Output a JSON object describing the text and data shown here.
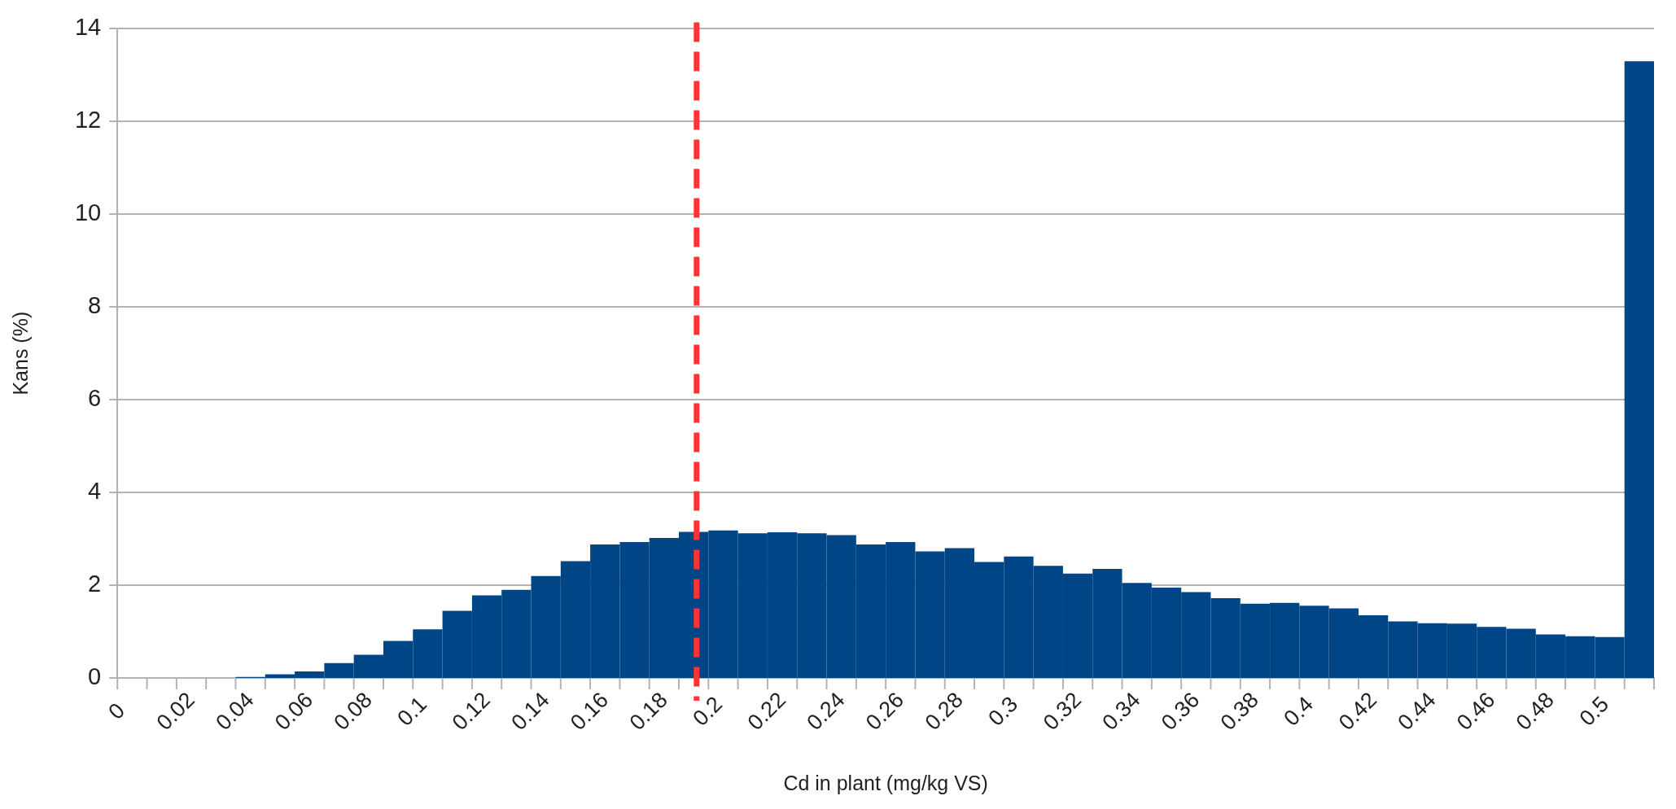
{
  "chart_data": {
    "type": "histogram",
    "xlabel": "Cd in plant (mg/kg VS)",
    "ylabel": "Kans (%)",
    "color": "#004586",
    "bins": [
      0,
      0.01,
      0.02,
      0.03,
      0.04,
      0.05,
      0.06,
      0.07,
      0.08,
      0.09,
      0.1,
      0.11,
      0.12,
      0.13,
      0.14,
      0.15,
      0.16,
      0.17,
      0.18,
      0.19,
      0.2,
      0.21,
      0.22,
      0.23,
      0.24,
      0.25,
      0.26,
      0.27,
      0.28,
      0.29,
      0.3,
      0.31,
      0.32,
      0.33,
      0.34,
      0.35,
      0.36,
      0.37,
      0.38,
      0.39,
      0.4,
      0.41,
      0.42,
      0.43,
      0.44,
      0.45,
      0.46,
      0.47,
      0.48,
      0.49,
      0.5,
      0.51,
      0.52
    ],
    "values": [
      0,
      0,
      0,
      0,
      0.02,
      0.08,
      0.14,
      0.32,
      0.5,
      0.8,
      1.05,
      1.45,
      1.78,
      1.9,
      2.2,
      2.52,
      2.88,
      2.93,
      3.02,
      3.15,
      3.18,
      3.12,
      3.14,
      3.12,
      3.08,
      2.88,
      2.93,
      2.73,
      2.8,
      2.5,
      2.62,
      2.42,
      2.25,
      2.35,
      2.05,
      1.95,
      1.85,
      1.72,
      1.6,
      1.62,
      1.56,
      1.5,
      1.35,
      1.22,
      1.18,
      1.17,
      1.1,
      1.06,
      0.94,
      0.9,
      0.88,
      13.3
    ],
    "xlim": [
      0,
      0.52
    ],
    "xticks": [
      0,
      {
        "value": 0.01,
        "label": null
      },
      0.02,
      {
        "value": 0.03,
        "label": null
      },
      0.04,
      {
        "value": 0.05,
        "label": null
      },
      0.06,
      {
        "value": 0.07,
        "label": null
      },
      0.08,
      {
        "value": 0.09,
        "label": null
      },
      0.1,
      {
        "value": 0.11,
        "label": null
      },
      0.12,
      {
        "value": 0.13,
        "label": null
      },
      0.14,
      {
        "value": 0.15,
        "label": null
      },
      0.16,
      {
        "value": 0.17,
        "label": null
      },
      0.18,
      {
        "value": 0.19,
        "label": null
      },
      0.2,
      {
        "value": 0.21,
        "label": null
      },
      0.22,
      {
        "value": 0.23,
        "label": null
      },
      0.24,
      {
        "value": 0.25,
        "label": null
      },
      0.26,
      {
        "value": 0.27,
        "label": null
      },
      0.28,
      {
        "value": 0.29,
        "label": null
      },
      0.3,
      {
        "value": 0.31,
        "label": null
      },
      0.32,
      {
        "value": 0.33,
        "label": null
      },
      0.34,
      {
        "value": 0.35,
        "label": null
      },
      0.36,
      {
        "value": 0.37,
        "label": null
      },
      0.38,
      {
        "value": 0.39,
        "label": null
      },
      0.4,
      {
        "value": 0.41,
        "label": null
      },
      0.42,
      {
        "value": 0.43,
        "label": null
      },
      0.44,
      {
        "value": 0.45,
        "label": null
      },
      0.46,
      {
        "value": 0.47,
        "label": null
      },
      0.48,
      {
        "value": 0.49,
        "label": null
      },
      0.5,
      {
        "value": 0.51,
        "label": null
      },
      {
        "value": 0.52,
        "label": null
      }
    ],
    "ylim": [
      0,
      14
    ],
    "yticks": [
      0,
      2,
      4,
      6,
      8,
      10,
      12,
      14
    ],
    "grid": "y",
    "ref_lines": [
      {
        "axis": "x",
        "value": 0.196,
        "color": "#ff3333",
        "line_style": "dashed"
      }
    ]
  }
}
